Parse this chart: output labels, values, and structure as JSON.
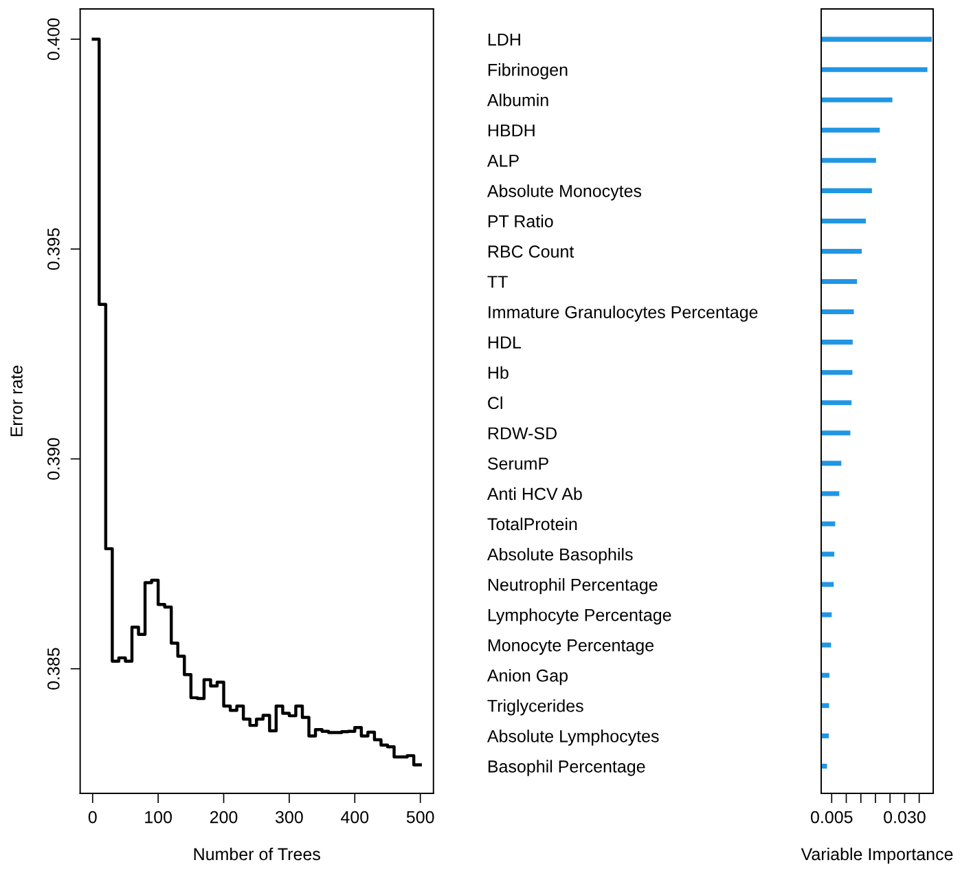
{
  "chart_data": [
    {
      "type": "step",
      "xlabel": "Number of Trees",
      "ylabel": "Error rate",
      "x": [
        1,
        10,
        20,
        30,
        40,
        50,
        60,
        70,
        80,
        90,
        100,
        110,
        120,
        130,
        140,
        150,
        160,
        170,
        180,
        190,
        200,
        210,
        220,
        230,
        240,
        250,
        260,
        270,
        280,
        290,
        300,
        310,
        320,
        330,
        340,
        350,
        360,
        370,
        380,
        390,
        400,
        410,
        420,
        430,
        440,
        450,
        460,
        470,
        480,
        490,
        500
      ],
      "series": [
        {
          "color": "#000000",
          "values": [
            0.4,
            0.39368,
            0.38786,
            0.38518,
            0.38526,
            0.38518,
            0.38599,
            0.38582,
            0.38705,
            0.38711,
            0.38653,
            0.38647,
            0.38561,
            0.3853,
            0.38486,
            0.38431,
            0.38429,
            0.38474,
            0.38459,
            0.38468,
            0.38411,
            0.38401,
            0.38411,
            0.3838,
            0.38365,
            0.3838,
            0.38389,
            0.38352,
            0.38411,
            0.38394,
            0.38388,
            0.38411,
            0.38384,
            0.3834,
            0.38355,
            0.38351,
            0.38348,
            0.38348,
            0.3835,
            0.38351,
            0.3836,
            0.3834,
            0.38349,
            0.38331,
            0.38318,
            0.38314,
            0.3829,
            0.3829,
            0.38293,
            0.38271,
            0.38271
          ]
        }
      ],
      "xlim": [
        -19,
        520
      ],
      "xticks": [
        0,
        100,
        200,
        300,
        400,
        500
      ],
      "ylim": [
        0.38203,
        0.40072
      ],
      "yticks": [
        0.385,
        {
          "value": 0.39,
          "label": "0.390"
        },
        0.395,
        {
          "value": 0.4,
          "label": "0.400"
        }
      ],
      "grid": false,
      "legend": false,
      "line_style": "solid",
      "marker": "none"
    },
    {
      "type": "bar",
      "orientation": "horizontal",
      "xlabel": "Variable Importance",
      "categories": [
        "LDH",
        "Fibrinogen",
        "Albumin",
        "HBDH",
        "ALP",
        "Absolute Monocytes",
        "PT Ratio",
        "RBC Count",
        "TT",
        "Immature Granulocytes Percentage",
        "HDL",
        "Hb",
        "Cl",
        "RDW-SD",
        "SerumP",
        "Anti HCV Ab",
        "TotalProtein",
        "Absolute Basophils",
        "Neutrophil Percentage",
        "Lymphocyte Percentage",
        "Monocyte Percentage",
        "Anion Gap",
        "Triglycerides",
        "Absolute Lymphocytes",
        "Basophil Percentage"
      ],
      "series": [
        {
          "color": "#2196e3",
          "values": [
            0.0393,
            0.0378,
            0.0258,
            0.0215,
            0.0202,
            0.0188,
            0.0167,
            0.0153,
            0.0137,
            0.0126,
            0.0122,
            0.0121,
            0.0118,
            0.0114,
            0.0083,
            0.0076,
            0.0062,
            0.0059,
            0.0057,
            0.005,
            0.0048,
            0.0042,
            0.0041,
            0.004,
            0.0034
          ]
        }
      ],
      "xlim": [
        0.0014,
        0.0398
      ],
      "xticks": [
        0.005,
        {
          "value": 0.01,
          "label": null
        },
        {
          "value": 0.015,
          "label": null
        },
        {
          "value": 0.02,
          "label": null
        },
        {
          "value": 0.025,
          "label": null
        },
        {
          "value": 0.03,
          "label": "0.030"
        },
        {
          "value": 0.035,
          "label": null
        }
      ],
      "grid": false,
      "legend": false
    }
  ]
}
